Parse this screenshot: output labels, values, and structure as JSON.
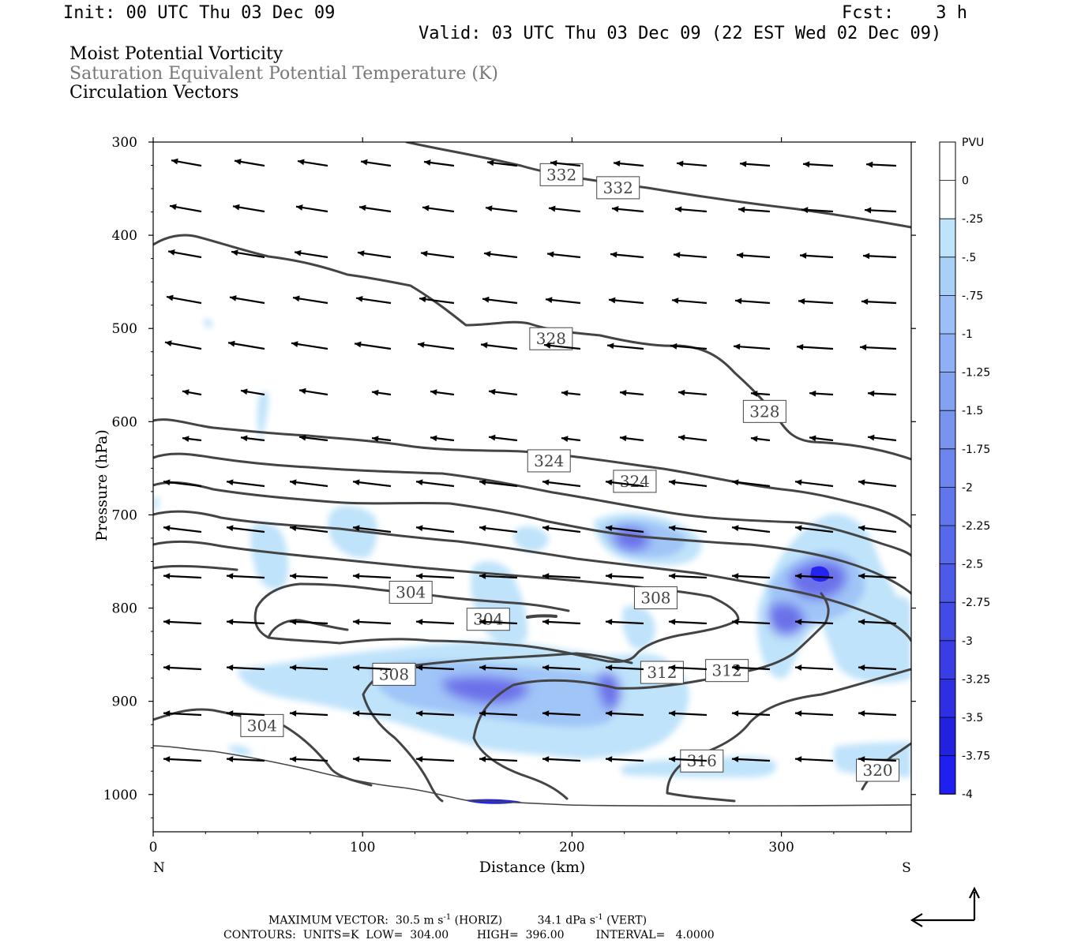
{
  "header": {
    "init": "Init: 00 UTC Thu 03 Dec 09",
    "fcst": "Fcst:    3 h",
    "valid": "Valid: 03 UTC Thu 03 Dec 09 (22 EST Wed 02 Dec 09)",
    "title_pv": "Moist Potential Vorticity",
    "title_theta": "Saturation Equivalent Potential Temperature (K)",
    "title_vectors": "Circulation Vectors"
  },
  "footer": {
    "max_vector_label": "MAXIMUM VECTOR:",
    "max_horiz": "30.5 m s",
    "horiz_unit": "(HORIZ)",
    "max_vert": "34.1 dPa s",
    "vert_unit": "(VERT)",
    "contours_label": "CONTOURS:",
    "units": "UNITS=K",
    "low": "LOW=  304.00",
    "high": "HIGH=  396.00",
    "interval": "INTERVAL=   4.0000"
  },
  "colors": {
    "contour": "#444444",
    "vector": "#000000",
    "pv_light": "#bfe3fa",
    "pv_mid": "#9bb8f5",
    "pv_deep": "#5a62e8",
    "pv_core": "#1f1ff0"
  },
  "chart_data": {
    "type": "cross-section",
    "x_axis": {
      "label": "Distance (km)",
      "range": [
        0,
        362
      ],
      "ticks": [
        0,
        100,
        200,
        300
      ],
      "left_end_label": "N",
      "right_end_label": "S"
    },
    "y_axis": {
      "label": "Pressure (hPa)",
      "range": [
        300,
        1040
      ],
      "inverted": true,
      "ticks": [
        300,
        400,
        500,
        600,
        700,
        800,
        900,
        1000
      ]
    },
    "colorbar": {
      "unit": "PVU",
      "levels": [
        "0",
        "-.25",
        "-.5",
        "-.75",
        "-1",
        "-1.25",
        "-1.5",
        "-1.75",
        "-2",
        "-2.25",
        "-2.5",
        "-2.75",
        "-3",
        "-3.25",
        "-3.5",
        "-3.75",
        "-4"
      ],
      "colors": [
        "#ffffff",
        "#ffffff",
        "#bfe3fa",
        "#aad0f8",
        "#9bbff6",
        "#8fb0f4",
        "#83a2f2",
        "#7893f0",
        "#6d85ee",
        "#6276ec",
        "#5868ea",
        "#4d5ae8",
        "#434be6",
        "#383de4",
        "#2e2fe2",
        "#2321e0",
        "#1f1ff0"
      ]
    },
    "contour_labels": [
      {
        "text": "332",
        "x": 195,
        "p": 335
      },
      {
        "text": "332",
        "x": 222,
        "p": 349
      },
      {
        "text": "328",
        "x": 190,
        "p": 511
      },
      {
        "text": "328",
        "x": 292,
        "p": 589
      },
      {
        "text": "324",
        "x": 189,
        "p": 642
      },
      {
        "text": "324",
        "x": 230,
        "p": 664
      },
      {
        "text": "304",
        "x": 123,
        "p": 783
      },
      {
        "text": "304",
        "x": 160,
        "p": 812
      },
      {
        "text": "308",
        "x": 240,
        "p": 789
      },
      {
        "text": "308",
        "x": 115,
        "p": 871
      },
      {
        "text": "312",
        "x": 243,
        "p": 869
      },
      {
        "text": "312",
        "x": 274,
        "p": 867
      },
      {
        "text": "304",
        "x": 52,
        "p": 926
      },
      {
        "text": "316",
        "x": 262,
        "p": 964
      },
      {
        "text": "320",
        "x": 346,
        "p": 974
      }
    ]
  }
}
